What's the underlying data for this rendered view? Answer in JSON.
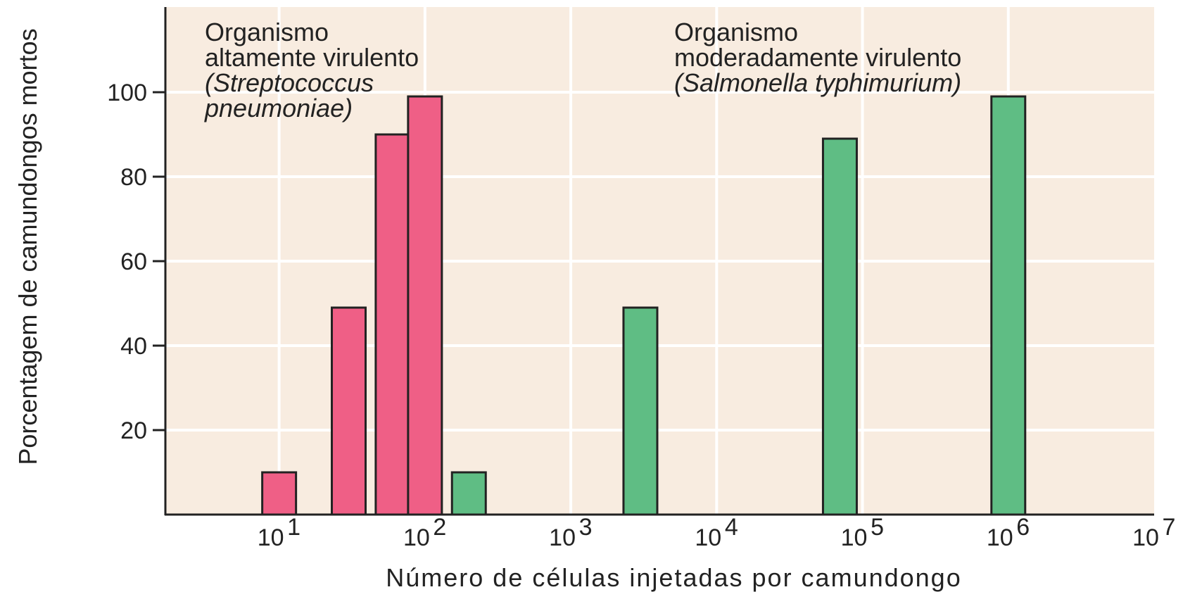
{
  "chart_data": {
    "type": "bar",
    "xlabel": "Número de células injetadas por camundongo",
    "ylabel": "Porcentagem de camundongos mortos",
    "x_scale": "log",
    "xlim": [
      1,
      7
    ],
    "ylim": [
      0,
      100
    ],
    "grid": true,
    "background_color": "#f8ece0",
    "grid_color": "#ffffff",
    "x_ticks": [
      {
        "exp": 1,
        "label": "10",
        "sup": "1"
      },
      {
        "exp": 2,
        "label": "10",
        "sup": "2"
      },
      {
        "exp": 3,
        "label": "10",
        "sup": "3"
      },
      {
        "exp": 4,
        "label": "10",
        "sup": "4"
      },
      {
        "exp": 5,
        "label": "10",
        "sup": "5"
      },
      {
        "exp": 6,
        "label": "10",
        "sup": "6"
      },
      {
        "exp": 7,
        "label": "10",
        "sup": "7"
      }
    ],
    "y_ticks": [
      {
        "value": 20,
        "label": "20"
      },
      {
        "value": 40,
        "label": "40"
      },
      {
        "value": 60,
        "label": "60"
      },
      {
        "value": 80,
        "label": "80"
      },
      {
        "value": 100,
        "label": "100"
      }
    ],
    "series": [
      {
        "color": "#ef5f86",
        "annotation": [
          "Organismo",
          "altamente virulento",
          "(Streptococcus",
          "pneumoniae)"
        ],
        "annotation_italic_from": 2,
        "points": [
          {
            "x": 10,
            "y": 10
          },
          {
            "x": 30,
            "y": 49
          },
          {
            "x": 60,
            "y": 90
          },
          {
            "x": 100,
            "y": 99
          }
        ]
      },
      {
        "color": "#5fbd84",
        "annotation": [
          "Organismo",
          "moderadamente virulento",
          "(Salmonella typhimurium)"
        ],
        "annotation_italic_from": 2,
        "points": [
          {
            "x": 200,
            "y": 10
          },
          {
            "x": 3000,
            "y": 49
          },
          {
            "x": 70000,
            "y": 89
          },
          {
            "x": 1000000,
            "y": 99
          }
        ]
      }
    ]
  }
}
